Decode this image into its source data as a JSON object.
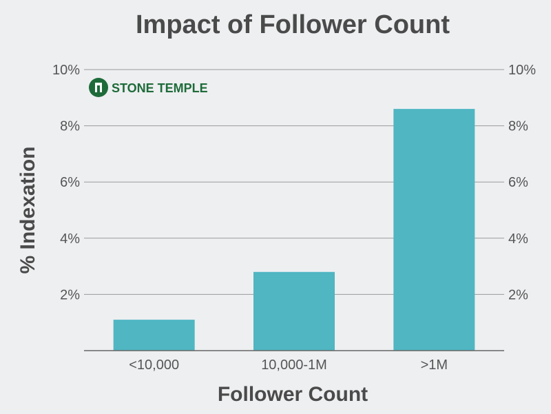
{
  "chart_data": {
    "type": "bar",
    "title": "Impact of Follower Count",
    "xlabel": "Follower Count",
    "ylabel": "% Indexation",
    "categories": [
      "<10,000",
      "10,000-1M",
      ">1M"
    ],
    "values": [
      1.1,
      2.8,
      8.6
    ],
    "ylim": [
      0,
      10
    ],
    "yticks": [
      2,
      4,
      6,
      8,
      10
    ],
    "ytick_labels": [
      "2%",
      "4%",
      "6%",
      "8%",
      "10%"
    ],
    "grid": true,
    "bar_color": "#4fb6c2"
  },
  "logo": {
    "text": "STONE TEMPLE",
    "color": "#1e6b3a"
  }
}
